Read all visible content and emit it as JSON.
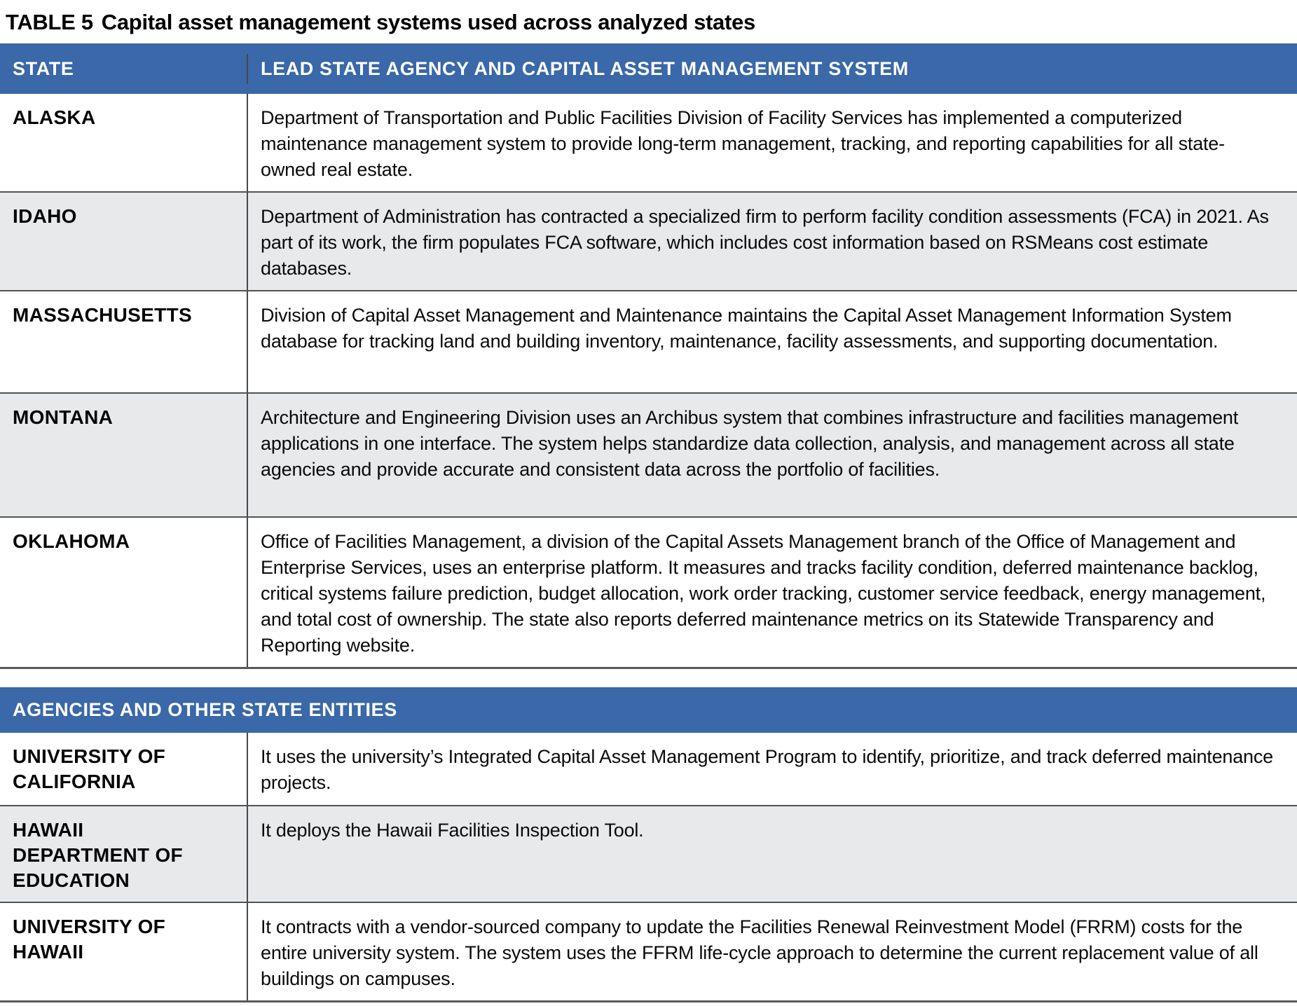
{
  "title": {
    "label": "TABLE 5",
    "text": "Capital asset management systems used across analyzed states"
  },
  "colors": {
    "header_blue": "#3a68a8",
    "row_alt_gray": "#e8e9eb",
    "border_dark": "#505254",
    "header_text": "#ffffff",
    "body_text": "#0a0a0a"
  },
  "table_states": {
    "columns": [
      "STATE",
      "LEAD STATE AGENCY AND CAPITAL ASSET MANAGEMENT SYSTEM"
    ],
    "rows": [
      {
        "state": "ALASKA",
        "description": "Department of Transportation and Public Facilities Division of Facility Services has implemented a computerized maintenance management system to provide long-term management, tracking, and reporting capabilities for all state-owned real estate."
      },
      {
        "state": "IDAHO",
        "description": "Department of Administration has contracted a specialized firm to perform facility condition assessments (FCA) in 2021. As part of its work, the firm populates FCA software, which includes cost information based on RSMeans cost estimate databases."
      },
      {
        "state": "MASSACHUSETTS",
        "description": "Division of Capital Asset Management and Maintenance maintains the Capital Asset Management Information System database for tracking land and building inventory, maintenance, facility assessments, and supporting documentation."
      },
      {
        "state": "MONTANA",
        "description": "Architecture and Engineering Division uses an Archibus system that combines infrastructure and facilities management applications in one interface. The system helps standardize data collection, analysis, and management across all state agencies and provide accurate and consistent data across the portfolio of facilities."
      },
      {
        "state": "OKLAHOMA",
        "description": "Office of Facilities Management, a division of the Capital Assets Management branch of the Office of Management and Enterprise Services, uses an enterprise platform. It measures and tracks facility condition, deferred maintenance backlog, critical systems failure prediction, budget allocation, work order tracking, customer service feedback, energy management, and total cost of ownership. The state also reports deferred maintenance metrics on its Statewide Transparency and Reporting website."
      }
    ]
  },
  "table_agencies": {
    "header": "AGENCIES AND OTHER STATE ENTITIES",
    "rows": [
      {
        "state": "UNIVERSITY OF\nCALIFORNIA",
        "description": "It uses the university’s Integrated Capital Asset Management Program to identify, prioritize, and track deferred maintenance projects."
      },
      {
        "state": "HAWAII\nDEPARTMENT OF\nEDUCATION",
        "description": "It deploys the Hawaii Facilities Inspection Tool."
      },
      {
        "state": "UNIVERSITY OF\nHAWAII",
        "description": "It contracts with a vendor-sourced company to update the Facilities Renewal Reinvestment Model (FRRM) costs for the entire university system. The system uses the FFRM life-cycle approach to determine the current replacement value of all buildings on campuses."
      }
    ]
  }
}
